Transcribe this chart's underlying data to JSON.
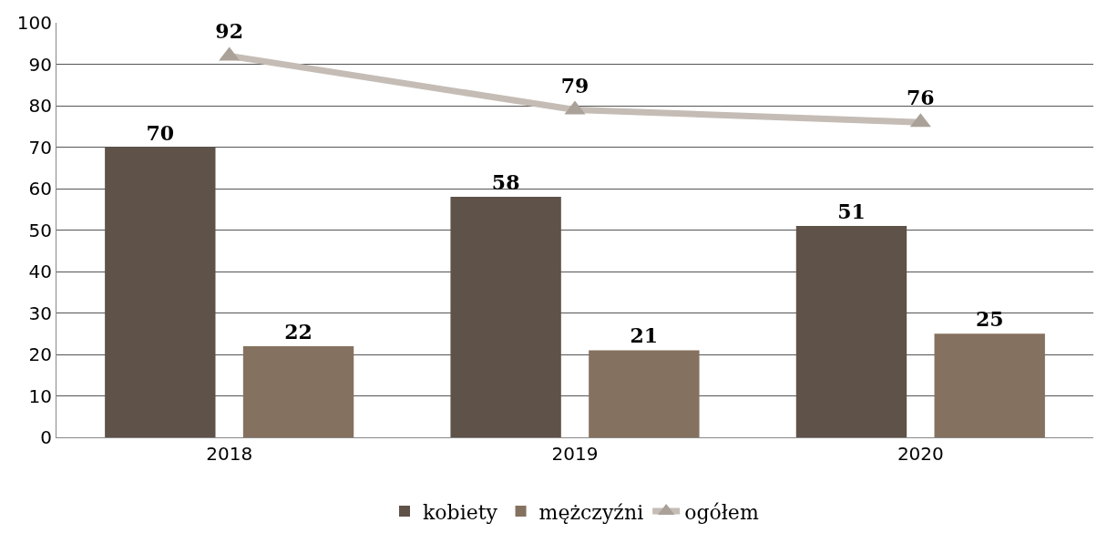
{
  "chart_data": {
    "type": "bar",
    "categories": [
      "2018",
      "2019",
      "2020"
    ],
    "series": [
      {
        "name": "kobiety",
        "color": "#5f5248",
        "values": [
          70,
          58,
          51
        ]
      },
      {
        "name": "mężczyźni",
        "color": "#85715f",
        "values": [
          22,
          21,
          25
        ]
      },
      {
        "name": "ogółem",
        "type": "line",
        "color": "#c4bcb5",
        "marker": "triangle",
        "values": [
          92,
          79,
          76
        ]
      }
    ],
    "ylim": [
      0,
      100
    ],
    "yticks": [
      0,
      10,
      20,
      30,
      40,
      50,
      60,
      70,
      80,
      90,
      100
    ],
    "grid": "y",
    "legend": "bottom",
    "data_labels": true
  }
}
